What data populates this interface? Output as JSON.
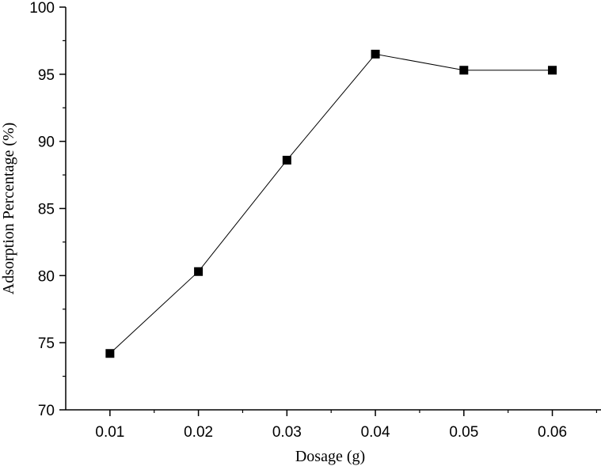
{
  "chart_data": {
    "type": "line",
    "title": "",
    "xlabel": "Dosage (g)",
    "ylabel": "Adsorption Percentage (%)",
    "x": [
      0.01,
      0.02,
      0.03,
      0.04,
      0.05,
      0.06
    ],
    "x_tick_labels": [
      "0.01",
      "0.02",
      "0.03",
      "0.04",
      "0.05",
      "0.06"
    ],
    "y_ticks": [
      70,
      75,
      80,
      85,
      90,
      95,
      100
    ],
    "y_tick_labels": [
      "70",
      "75",
      "80",
      "85",
      "90",
      "95",
      "100"
    ],
    "xlim": [
      0.005,
      0.0655
    ],
    "ylim": [
      70,
      100
    ],
    "series": [
      {
        "values": [
          74.2,
          80.3,
          88.6,
          96.5,
          95.3,
          95.3
        ],
        "marker": "square",
        "color": "#000000"
      }
    ],
    "grid": false,
    "legend": "none"
  }
}
